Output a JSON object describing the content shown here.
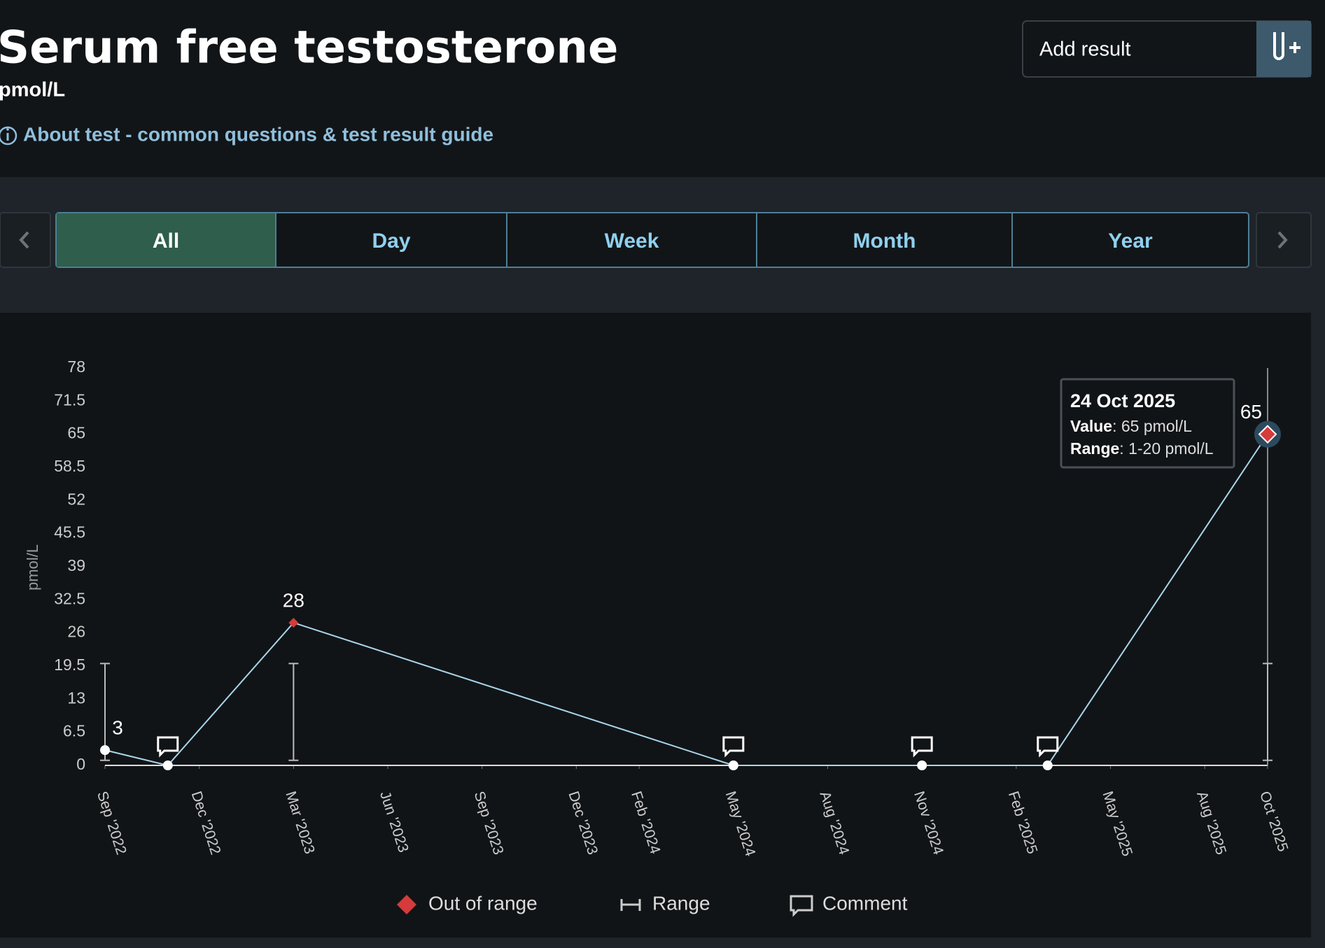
{
  "header": {
    "title": "Serum free testosterone",
    "unit": "pmol/L",
    "about": "About test - common questions & test result guide",
    "add_button": "Add result"
  },
  "tabs": {
    "items": [
      "All",
      "Day",
      "Week",
      "Month",
      "Year"
    ],
    "active": 0
  },
  "chart_data": {
    "type": "line",
    "y_label": "pmol/L",
    "x": [
      "2022-09",
      "2022-11",
      "2023-03",
      "2024-05",
      "2024-11",
      "2025-03",
      "2025-10"
    ],
    "values": [
      3,
      0,
      28,
      0,
      0,
      0,
      65
    ],
    "markers": [
      "circle",
      "circle",
      "diamond",
      "circle",
      "circle",
      "circle",
      "diamond"
    ],
    "comments": [
      false,
      true,
      false,
      true,
      true,
      true,
      false
    ],
    "color": "#a9d6ea",
    "out_of_range_color": "#d63a3a",
    "range": [
      1,
      20
    ],
    "range_points": [
      0,
      2,
      6
    ],
    "xlim": [
      "2022-09",
      "2025-10"
    ],
    "xticks": [
      {
        "value": "2022-09",
        "label": "Sep '2022"
      },
      {
        "value": "2022-12",
        "label": "Dec '2022"
      },
      {
        "value": "2023-03",
        "label": "Mar '2023"
      },
      {
        "value": "2023-06",
        "label": "Jun '2023"
      },
      {
        "value": "2023-09",
        "label": "Sep '2023"
      },
      {
        "value": "2023-12",
        "label": "Dec '2023"
      },
      {
        "value": "2024-02",
        "label": "Feb '2024"
      },
      {
        "value": "2024-05",
        "label": "May '2024"
      },
      {
        "value": "2024-08",
        "label": "Aug '2024"
      },
      {
        "value": "2024-11",
        "label": "Nov '2024"
      },
      {
        "value": "2025-02",
        "label": "Feb '2025"
      },
      {
        "value": "2025-05",
        "label": "May '2025"
      },
      {
        "value": "2025-08",
        "label": "Aug '2025"
      },
      {
        "value": "2025-10",
        "label": "Oct '2025"
      }
    ],
    "ylim": [
      0,
      78
    ],
    "yticks": [
      0,
      6.5,
      13,
      19.5,
      26,
      32.5,
      39,
      45.5,
      52,
      58.5,
      65,
      71.5,
      78
    ],
    "legend": [
      "Out of range",
      "Range",
      "Comment"
    ],
    "tooltip": {
      "title": "24 Oct 2025",
      "lines": [
        {
          "label": "Value",
          "text": ": 65 pmol/L"
        },
        {
          "label": "Range",
          "text": ": 1-20 pmol/L"
        }
      ]
    }
  }
}
